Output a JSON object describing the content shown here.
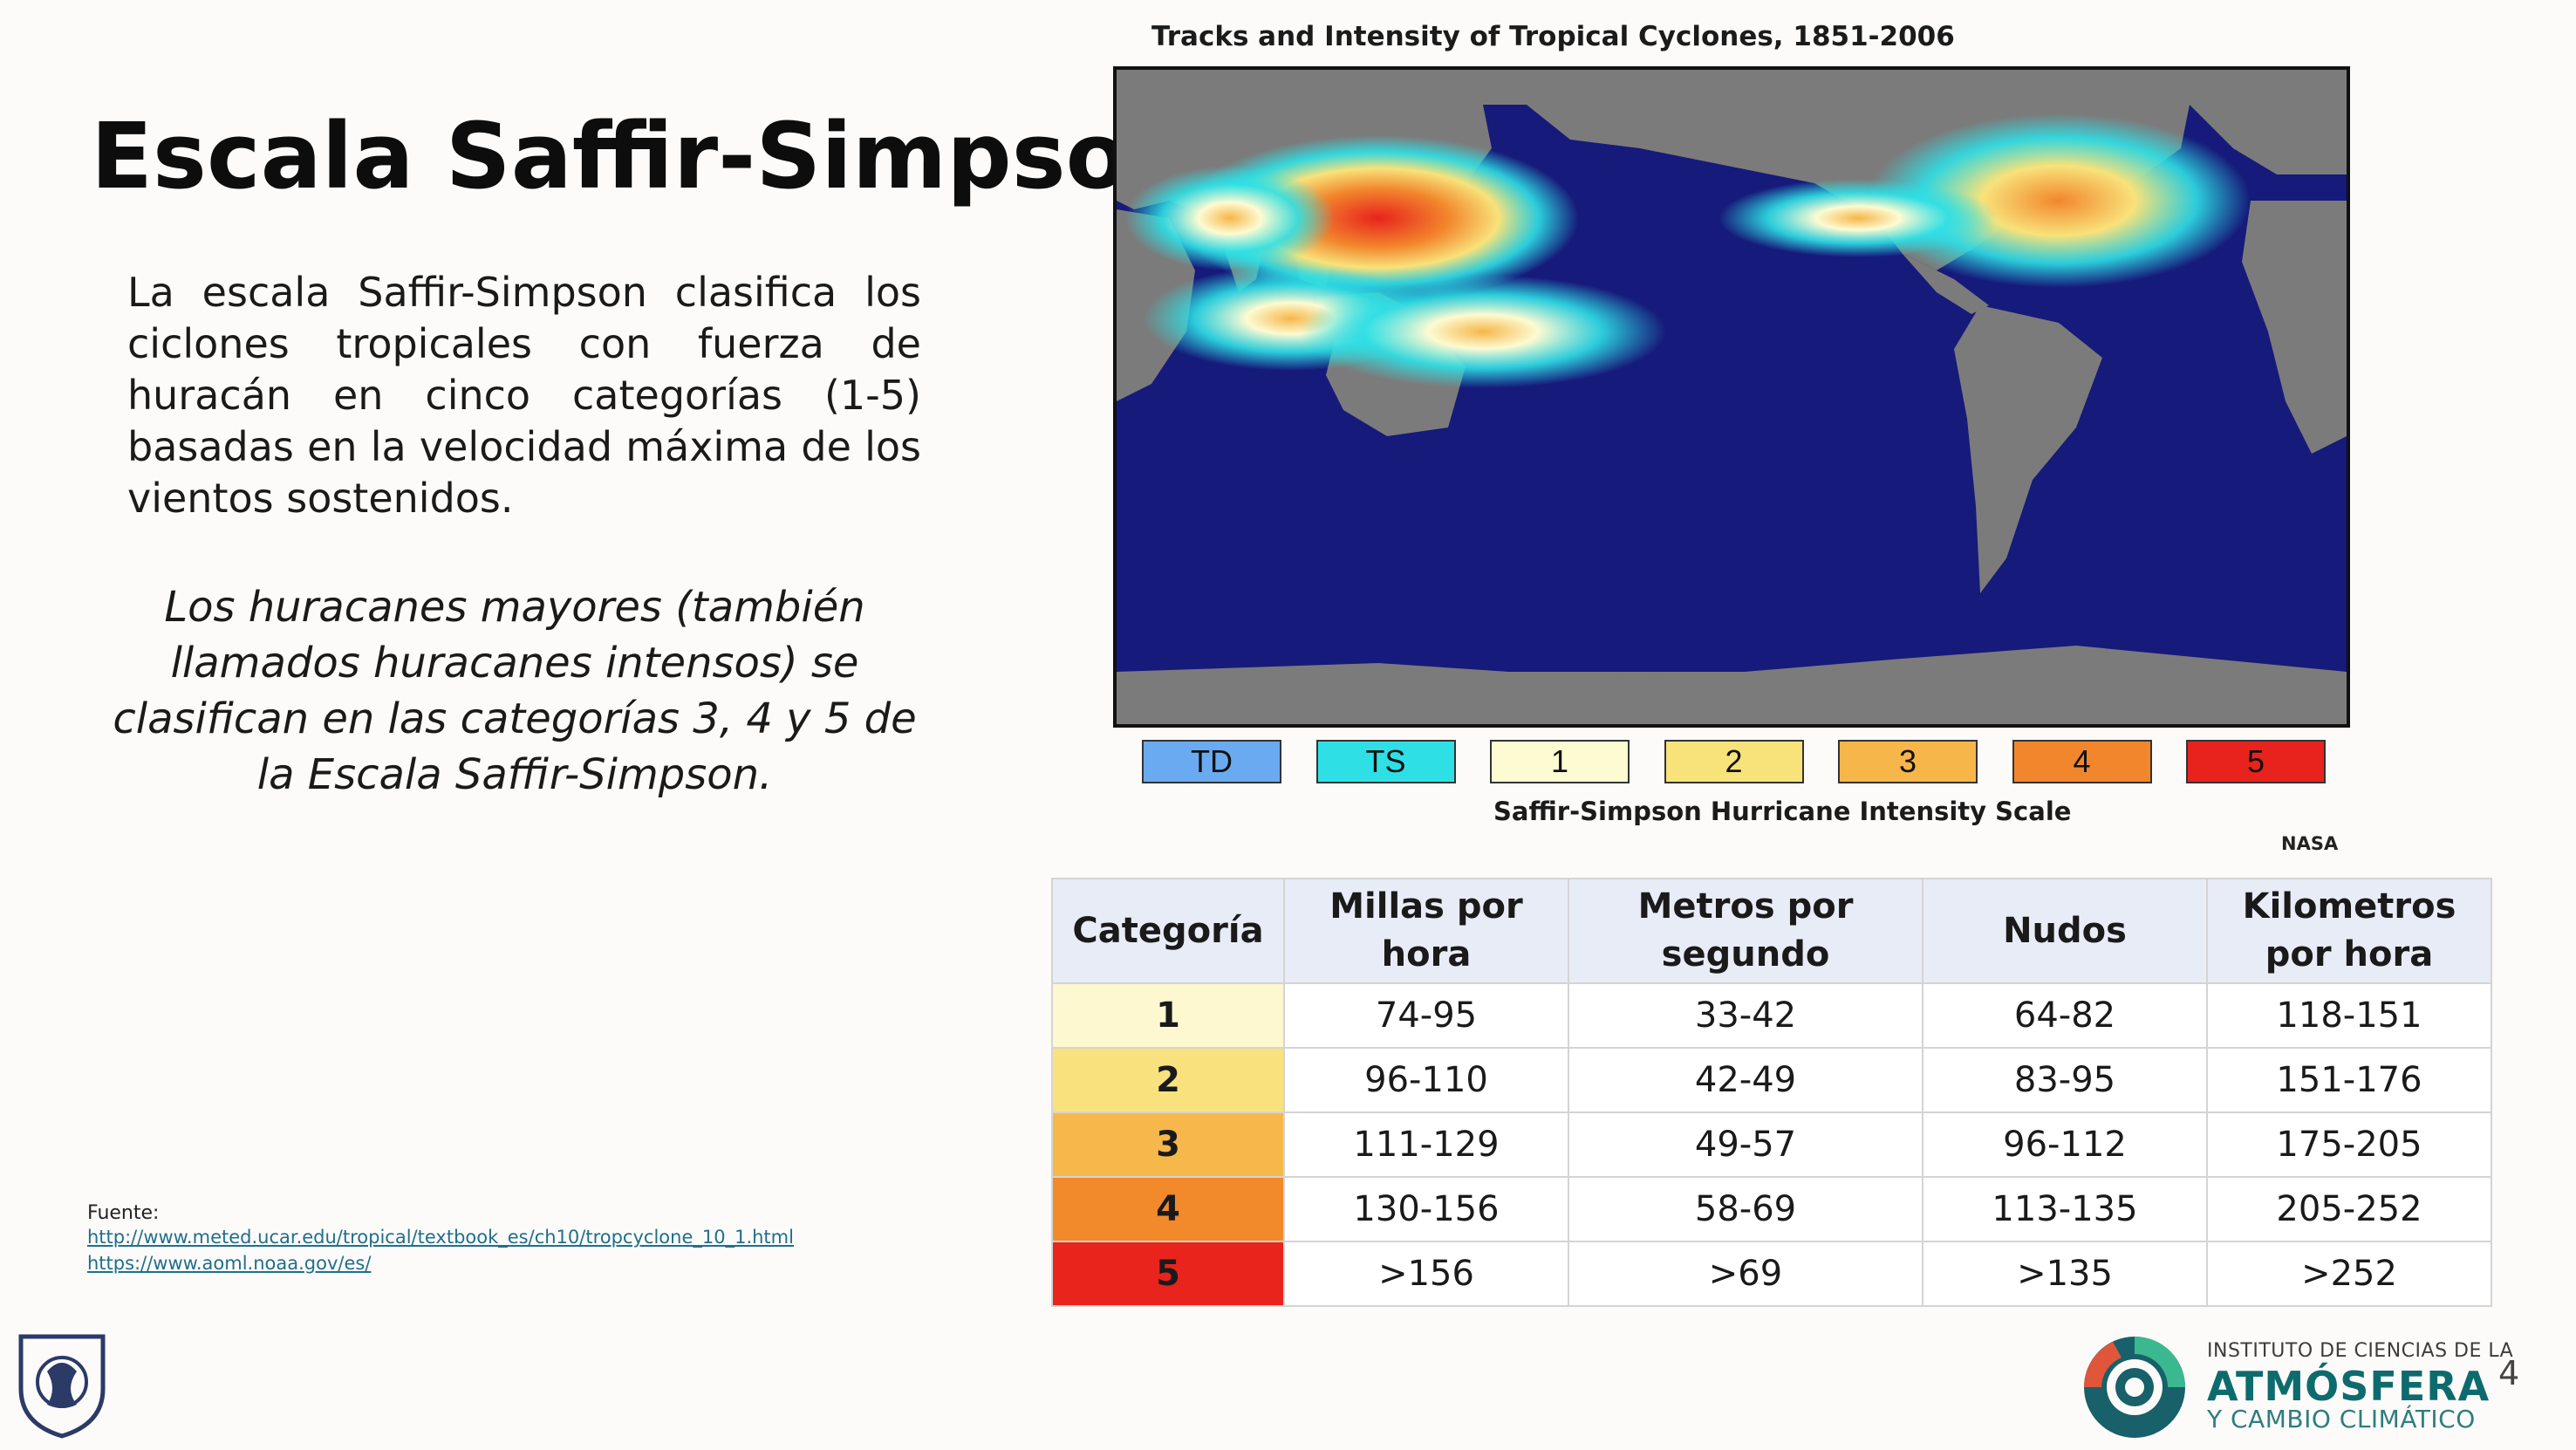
{
  "slide": {
    "title": "Escala Saffir-Simpson",
    "paragraph1": "La escala Saffir-Simpson clasifica los ciclones tropicales con fuerza de huracán en cinco categorías (1-5) basadas en la velocidad máxima de los vientos sostenidos.",
    "paragraph2": "Los huracanes mayores (también llamados huracanes intensos) se clasifican en las categorías 3, 4 y 5 de la Escala Saffir-Simpson.",
    "page_number": "4"
  },
  "source": {
    "label": "Fuente:",
    "links": [
      "http://www.meted.ucar.edu/tropical/textbook_es/ch10/tropcyclone_10_1.html",
      "https://www.aoml.noaa.gov/es/"
    ]
  },
  "figure": {
    "title": "Tracks and Intensity of Tropical Cyclones, 1851-2006",
    "scale_title": "Saffir-Simpson Hurricane Intensity Scale",
    "credit": "NASA",
    "legend": [
      {
        "label": "TD",
        "color": "#6aaaf0"
      },
      {
        "label": "TS",
        "color": "#2ee0e6"
      },
      {
        "label": "1",
        "color": "#fdfbd2"
      },
      {
        "label": "2",
        "color": "#f8e27a"
      },
      {
        "label": "3",
        "color": "#f6b64a"
      },
      {
        "label": "4",
        "color": "#f2862c"
      },
      {
        "label": "5",
        "color": "#e8231d"
      }
    ]
  },
  "table": {
    "headers": [
      "Categoría",
      "Millas por hora",
      "Metros por segundo",
      "Nudos",
      "Kilometros por hora"
    ],
    "rows": [
      {
        "cat": "1",
        "color": "#fdf8d0",
        "mph": "74-95",
        "ms": "33-42",
        "kt": "64-82",
        "kmh": "118-151"
      },
      {
        "cat": "2",
        "color": "#f9e27e",
        "mph": "96-110",
        "ms": "42-49",
        "kt": "83-95",
        "kmh": "151-176"
      },
      {
        "cat": "3",
        "color": "#f7b84b",
        "mph": "111-129",
        "ms": "49-57",
        "kt": "96-112",
        "kmh": "175-205"
      },
      {
        "cat": "4",
        "color": "#f28a2c",
        "mph": "130-156",
        "ms": "58-69",
        "kt": "113-135",
        "kmh": "205-252"
      },
      {
        "cat": "5",
        "color": "#e8241d",
        "mph": ">156",
        "ms": ">69",
        "kt": ">135",
        "kmh": ">252"
      }
    ]
  },
  "logo": {
    "line1": "INSTITUTO DE CIENCIAS DE LA",
    "line2": "ATMÓSFERA",
    "line3": "Y CAMBIO CLIMÁTICO"
  }
}
